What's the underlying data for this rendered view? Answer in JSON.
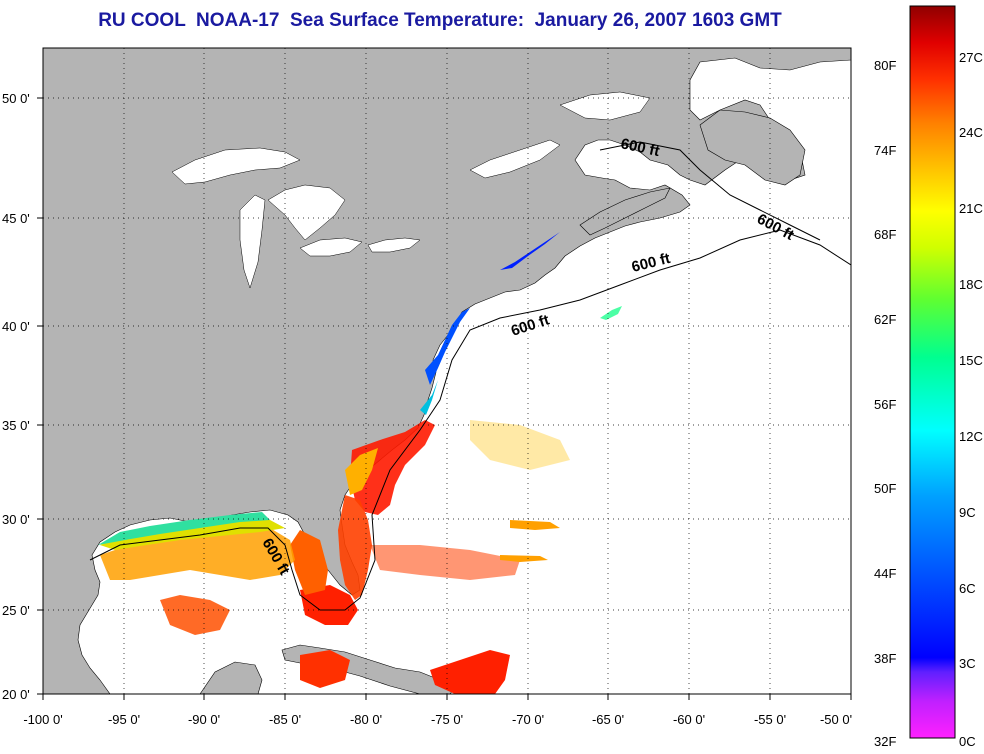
{
  "title": "RU COOL  NOAA-17  Sea Surface Temperature:  January 26, 2007 1603 GMT",
  "map": {
    "lon_labels": [
      "-100 0'",
      "-95 0'",
      "-90 0'",
      "-85 0'",
      "-80 0'",
      "-75 0'",
      "-70 0'",
      "-65 0'",
      "-60 0'",
      "-55 0'",
      "-50 0'"
    ],
    "lat_labels": [
      "50 0'",
      "45 0'",
      "40 0'",
      "35 0'",
      "30 0'",
      "25 0'",
      "20 0'"
    ],
    "lon_range": [
      -100,
      -50
    ],
    "lat_range": [
      20,
      52.5
    ],
    "land_color": "#b4b4b4",
    "no_data_color": "#ffffff",
    "contour_labels": [
      "600 ft",
      "600 ft",
      "600 ft",
      "600 ft",
      "600 ft"
    ]
  },
  "colorbar": {
    "fahrenheit_labels": [
      "80F",
      "74F",
      "68F",
      "62F",
      "56F",
      "50F",
      "44F",
      "38F",
      "32F"
    ],
    "celsius_labels": [
      "27C",
      "24C",
      "21C",
      "18C",
      "15C",
      "12C",
      "9C",
      "6C",
      "3C",
      "0C"
    ],
    "colors": [
      "#ff20ff",
      "#8020ff",
      "#0000ff",
      "#00a0ff",
      "#00ffff",
      "#00ff80",
      "#a0ff00",
      "#ffff00",
      "#ffa000",
      "#ff4000",
      "#ff0000",
      "#900000"
    ]
  }
}
